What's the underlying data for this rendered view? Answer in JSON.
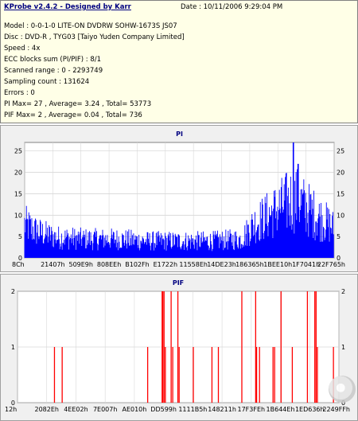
{
  "header": {
    "title": "KProbe v2.4.2 - Designed by Karr",
    "date": "Date : 10/11/2006 9:29:04 PM",
    "lines": [
      "Model : 0-0-1-0 LITE-ON DVDRW SOHW-1673S JS07",
      "Disc : DVD-R , TYG03 [Taiyo Yuden Company Limited]",
      "Speed : 4x",
      "ECC blocks sum (PI/PIF) : 8/1",
      "Scanned range : 0 - 2293749",
      "Sampling count : 131624",
      "Errors : 0",
      "PI Max= 27 , Average= 3.24 , Total= 53773",
      "PIF Max= 2 , Average= 0.04 , Total= 736"
    ]
  },
  "chart_data": [
    {
      "type": "bar",
      "title": "PI",
      "ylim": [
        0,
        27
      ],
      "yticks": [
        "0",
        "5",
        "10",
        "15",
        "20",
        "25"
      ],
      "xticks": [
        "8Ch",
        "21407h",
        "509E9h",
        "808EEh",
        "B102Fh",
        "E1722h",
        "11558Eh",
        "14DE23h",
        "186365h",
        "1BEE10h",
        "1F7041h",
        "22F765h"
      ],
      "series_color": "#0000ff",
      "profile": [
        {
          "x": 0.0,
          "y": 9
        },
        {
          "x": 0.04,
          "y": 7
        },
        {
          "x": 0.1,
          "y": 5.5
        },
        {
          "x": 0.2,
          "y": 5
        },
        {
          "x": 0.3,
          "y": 5
        },
        {
          "x": 0.4,
          "y": 4.5
        },
        {
          "x": 0.5,
          "y": 4.5
        },
        {
          "x": 0.6,
          "y": 4.5
        },
        {
          "x": 0.7,
          "y": 5
        },
        {
          "x": 0.74,
          "y": 9
        },
        {
          "x": 0.8,
          "y": 12
        },
        {
          "x": 0.87,
          "y": 16
        },
        {
          "x": 0.93,
          "y": 12
        },
        {
          "x": 1.0,
          "y": 8
        }
      ],
      "peaks": [
        {
          "x": 0.868,
          "y": 27
        },
        {
          "x": 0.884,
          "y": 22
        }
      ]
    },
    {
      "type": "bar",
      "title": "PIF",
      "ylim": [
        0,
        2
      ],
      "yticks": [
        "0",
        "1",
        "2"
      ],
      "xticks": [
        "12h",
        "2082Eh",
        "4EE02h",
        "7E007h",
        "AE010h",
        "DD599h",
        "1111B5h",
        "148211h",
        "17F3FEh",
        "1B644Eh",
        "1ED636h",
        "2249FFh"
      ],
      "series_color": "#ff0000",
      "spikes": [
        {
          "x": 0.115,
          "y": 1
        },
        {
          "x": 0.139,
          "y": 1
        },
        {
          "x": 0.405,
          "y": 1
        },
        {
          "x": 0.45,
          "y": 2
        },
        {
          "x": 0.452,
          "y": 2
        },
        {
          "x": 0.456,
          "y": 2
        },
        {
          "x": 0.46,
          "y": 1
        },
        {
          "x": 0.478,
          "y": 2
        },
        {
          "x": 0.483,
          "y": 1
        },
        {
          "x": 0.499,
          "y": 2
        },
        {
          "x": 0.503,
          "y": 1
        },
        {
          "x": 0.547,
          "y": 1
        },
        {
          "x": 0.605,
          "y": 1
        },
        {
          "x": 0.625,
          "y": 1
        },
        {
          "x": 0.698,
          "y": 2
        },
        {
          "x": 0.741,
          "y": 2
        },
        {
          "x": 0.744,
          "y": 1
        },
        {
          "x": 0.753,
          "y": 1
        },
        {
          "x": 0.795,
          "y": 1
        },
        {
          "x": 0.8,
          "y": 1
        },
        {
          "x": 0.82,
          "y": 2
        },
        {
          "x": 0.855,
          "y": 1
        },
        {
          "x": 0.902,
          "y": 2
        },
        {
          "x": 0.925,
          "y": 2
        },
        {
          "x": 0.929,
          "y": 2
        },
        {
          "x": 0.933,
          "y": 1
        },
        {
          "x": 0.983,
          "y": 1
        }
      ]
    }
  ]
}
